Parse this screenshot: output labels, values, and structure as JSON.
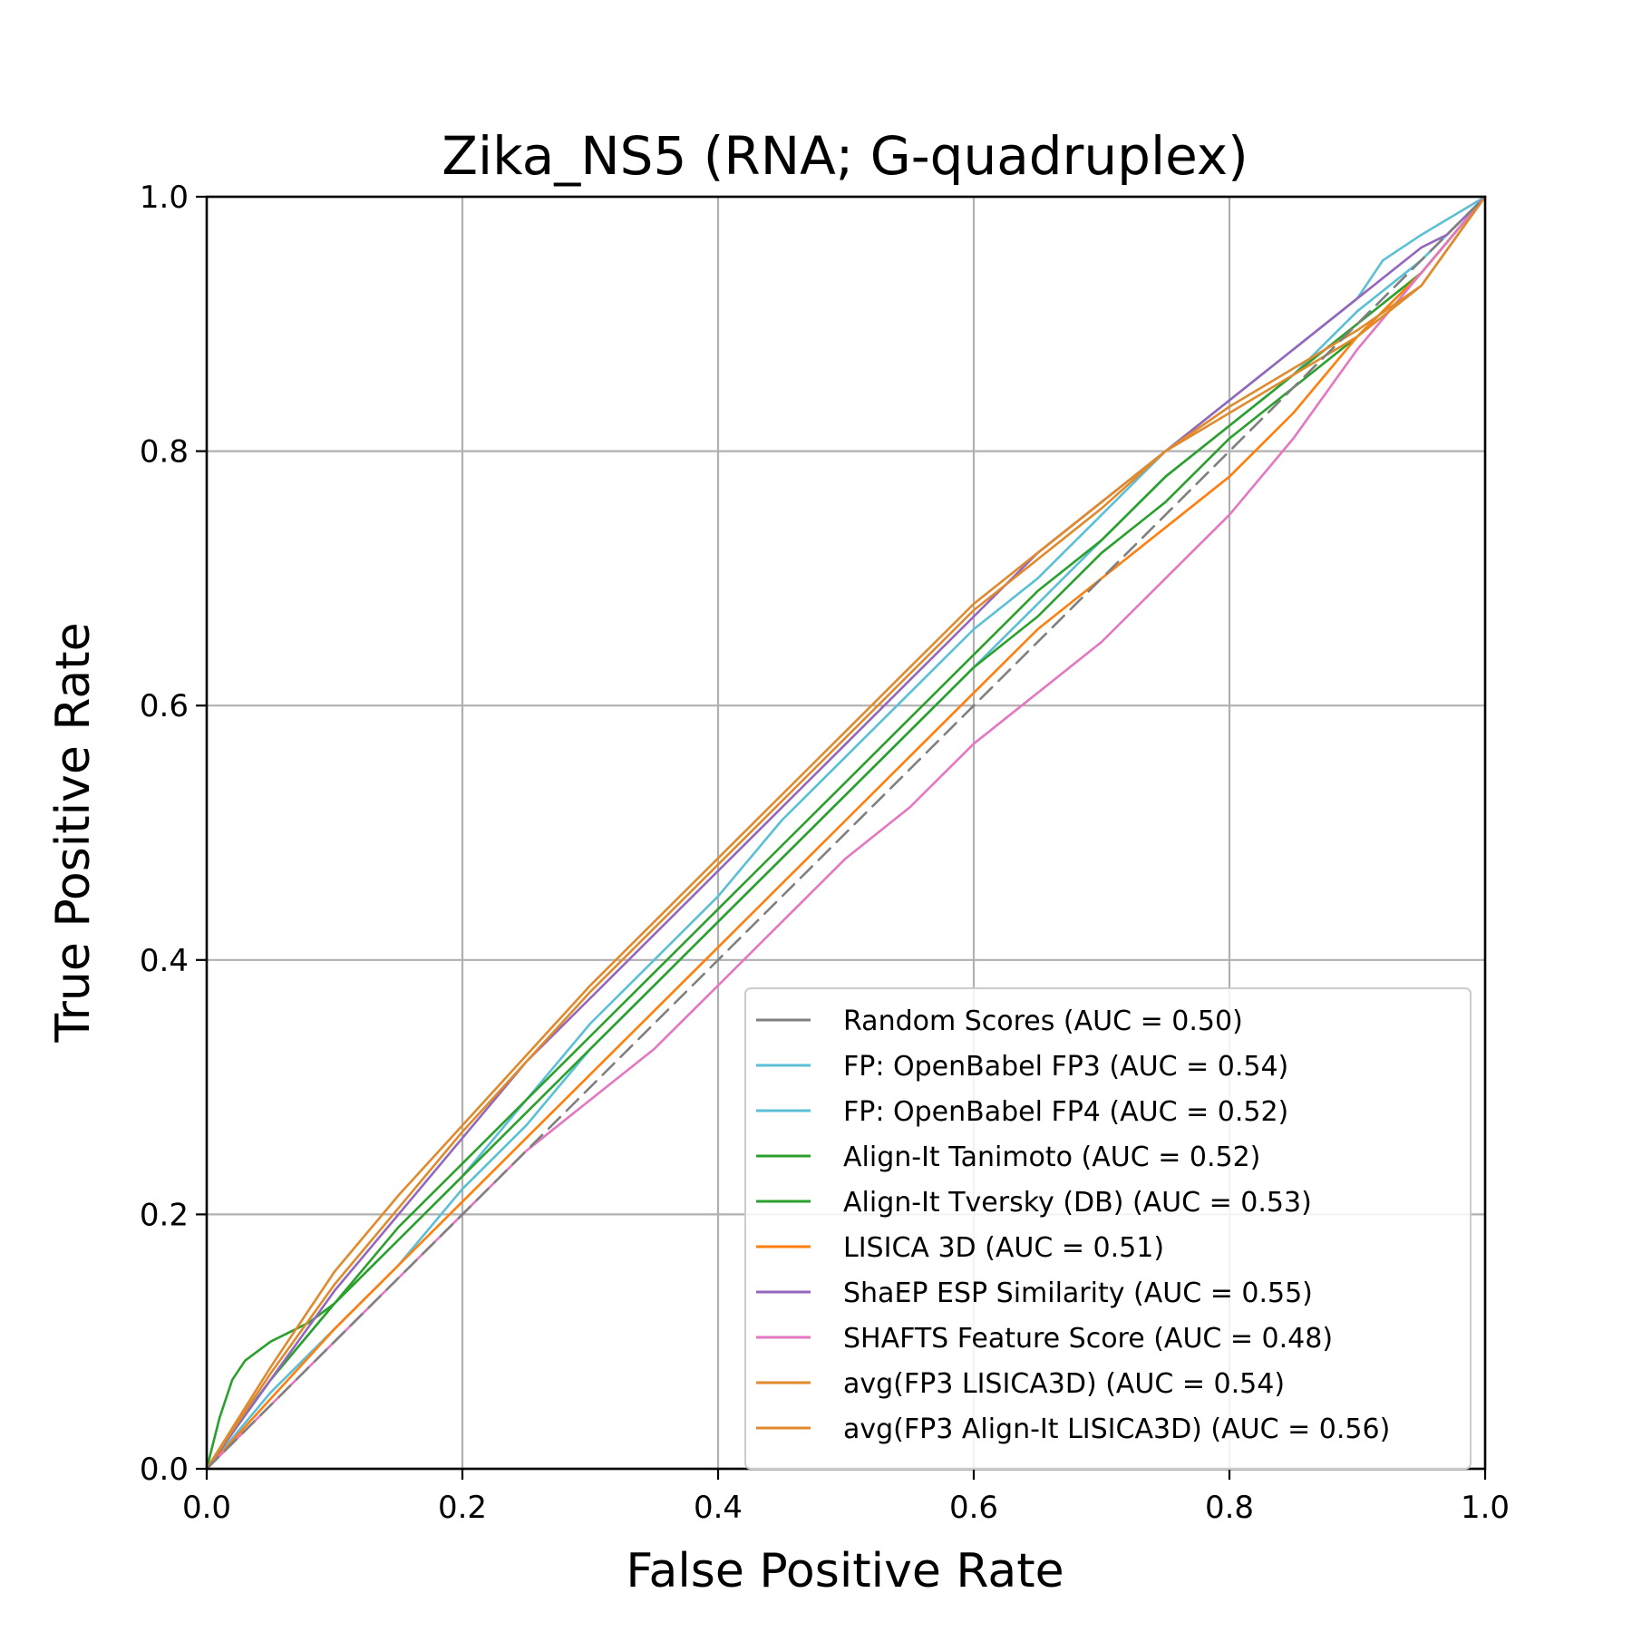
{
  "chart_data": {
    "type": "line",
    "title": "Zika_NS5 (RNA; G-quadruplex)",
    "xlabel": "False Positive Rate",
    "ylabel": "True Positive Rate",
    "xlim": [
      0,
      1
    ],
    "ylim": [
      0,
      1
    ],
    "xticks": [
      "0.0",
      "0.2",
      "0.4",
      "0.6",
      "0.8",
      "1.0"
    ],
    "yticks": [
      "0.0",
      "0.2",
      "0.4",
      "0.6",
      "0.8",
      "1.0"
    ],
    "grid": true,
    "legend_position": "lower-right",
    "series": [
      {
        "name": "Random Scores (AUC = 0.50)",
        "color": "#808080",
        "dashed": true,
        "x": [
          0,
          0.2,
          0.4,
          0.6,
          0.8,
          1.0
        ],
        "y": [
          0,
          0.2,
          0.4,
          0.6,
          0.8,
          1.0
        ]
      },
      {
        "name": "FP: OpenBabel FP3 (AUC = 0.54)",
        "color": "#5bc0d6",
        "dashed": false,
        "x": [
          0,
          0.02,
          0.05,
          0.1,
          0.15,
          0.2,
          0.25,
          0.3,
          0.35,
          0.4,
          0.45,
          0.5,
          0.55,
          0.6,
          0.65,
          0.7,
          0.75,
          0.8,
          0.85,
          0.9,
          0.92,
          0.95,
          1.0
        ],
        "y": [
          0,
          0.03,
          0.07,
          0.13,
          0.18,
          0.23,
          0.29,
          0.35,
          0.4,
          0.45,
          0.51,
          0.56,
          0.61,
          0.66,
          0.7,
          0.75,
          0.8,
          0.84,
          0.88,
          0.92,
          0.95,
          0.97,
          1.0
        ]
      },
      {
        "name": "FP: OpenBabel FP4 (AUC = 0.52)",
        "color": "#5bc0d6",
        "dashed": false,
        "x": [
          0,
          0.05,
          0.1,
          0.15,
          0.2,
          0.25,
          0.3,
          0.35,
          0.4,
          0.45,
          0.5,
          0.55,
          0.6,
          0.65,
          0.7,
          0.75,
          0.8,
          0.85,
          0.9,
          0.95,
          1.0
        ],
        "y": [
          0,
          0.06,
          0.11,
          0.16,
          0.22,
          0.27,
          0.33,
          0.38,
          0.43,
          0.48,
          0.53,
          0.58,
          0.63,
          0.68,
          0.73,
          0.78,
          0.82,
          0.86,
          0.91,
          0.95,
          1.0
        ]
      },
      {
        "name": "Align-It Tanimoto (AUC = 0.52)",
        "color": "#2ca02c",
        "dashed": false,
        "x": [
          0,
          0.01,
          0.02,
          0.03,
          0.05,
          0.08,
          0.1,
          0.15,
          0.2,
          0.25,
          0.3,
          0.35,
          0.4,
          0.45,
          0.5,
          0.55,
          0.6,
          0.65,
          0.7,
          0.75,
          0.8,
          0.85,
          0.9,
          0.95,
          1.0
        ],
        "y": [
          0,
          0.04,
          0.07,
          0.085,
          0.1,
          0.115,
          0.13,
          0.18,
          0.23,
          0.28,
          0.33,
          0.38,
          0.43,
          0.48,
          0.53,
          0.58,
          0.63,
          0.67,
          0.72,
          0.76,
          0.81,
          0.85,
          0.89,
          0.94,
          1.0
        ]
      },
      {
        "name": "Align-It Tversky (DB) (AUC = 0.53)",
        "color": "#2ca02c",
        "dashed": false,
        "x": [
          0,
          0.05,
          0.1,
          0.15,
          0.2,
          0.25,
          0.3,
          0.35,
          0.4,
          0.45,
          0.5,
          0.55,
          0.6,
          0.65,
          0.7,
          0.75,
          0.8,
          0.85,
          0.9,
          0.95,
          1.0
        ],
        "y": [
          0,
          0.07,
          0.13,
          0.19,
          0.24,
          0.29,
          0.34,
          0.39,
          0.44,
          0.49,
          0.54,
          0.59,
          0.64,
          0.69,
          0.73,
          0.78,
          0.82,
          0.86,
          0.9,
          0.94,
          1.0
        ]
      },
      {
        "name": "LISICA 3D (AUC = 0.51)",
        "color": "#ff7f0e",
        "dashed": false,
        "x": [
          0,
          0.05,
          0.1,
          0.15,
          0.2,
          0.25,
          0.3,
          0.35,
          0.4,
          0.45,
          0.5,
          0.55,
          0.6,
          0.65,
          0.7,
          0.75,
          0.8,
          0.85,
          0.9,
          0.95,
          1.0
        ],
        "y": [
          0,
          0.055,
          0.11,
          0.16,
          0.21,
          0.26,
          0.31,
          0.36,
          0.41,
          0.46,
          0.51,
          0.56,
          0.61,
          0.66,
          0.7,
          0.74,
          0.78,
          0.83,
          0.89,
          0.94,
          1.0
        ]
      },
      {
        "name": "ShaEP ESP Similarity (AUC = 0.55)",
        "color": "#9467bd",
        "dashed": false,
        "x": [
          0,
          0.05,
          0.1,
          0.15,
          0.2,
          0.25,
          0.3,
          0.35,
          0.4,
          0.45,
          0.5,
          0.55,
          0.6,
          0.65,
          0.7,
          0.75,
          0.8,
          0.85,
          0.9,
          0.95,
          0.97,
          1.0
        ],
        "y": [
          0,
          0.07,
          0.14,
          0.2,
          0.26,
          0.32,
          0.37,
          0.42,
          0.47,
          0.52,
          0.57,
          0.62,
          0.67,
          0.72,
          0.76,
          0.8,
          0.84,
          0.88,
          0.92,
          0.96,
          0.97,
          1.0
        ]
      },
      {
        "name": "SHAFTS Feature Score (AUC = 0.48)",
        "color": "#e377c2",
        "dashed": false,
        "x": [
          0,
          0.05,
          0.1,
          0.15,
          0.2,
          0.25,
          0.3,
          0.35,
          0.4,
          0.45,
          0.5,
          0.55,
          0.6,
          0.65,
          0.7,
          0.75,
          0.8,
          0.85,
          0.9,
          0.95,
          1.0
        ],
        "y": [
          0,
          0.05,
          0.1,
          0.15,
          0.2,
          0.25,
          0.29,
          0.33,
          0.38,
          0.43,
          0.48,
          0.52,
          0.57,
          0.61,
          0.65,
          0.7,
          0.75,
          0.81,
          0.88,
          0.94,
          1.0
        ]
      },
      {
        "name": "avg(FP3 LISICA3D) (AUC = 0.54)",
        "color": "#e08a2e",
        "dashed": false,
        "x": [
          0,
          0.05,
          0.1,
          0.15,
          0.2,
          0.25,
          0.3,
          0.35,
          0.4,
          0.45,
          0.5,
          0.55,
          0.6,
          0.65,
          0.7,
          0.75,
          0.8,
          0.85,
          0.9,
          0.95,
          1.0
        ],
        "y": [
          0,
          0.075,
          0.145,
          0.205,
          0.265,
          0.32,
          0.375,
          0.425,
          0.475,
          0.525,
          0.575,
          0.625,
          0.675,
          0.715,
          0.755,
          0.8,
          0.835,
          0.865,
          0.895,
          0.93,
          1.0
        ]
      },
      {
        "name": "avg(FP3 Align-It LISICA3D) (AUC = 0.56)",
        "color": "#e08a2e",
        "dashed": false,
        "x": [
          0,
          0.05,
          0.1,
          0.15,
          0.2,
          0.25,
          0.3,
          0.35,
          0.4,
          0.45,
          0.5,
          0.55,
          0.6,
          0.65,
          0.7,
          0.75,
          0.8,
          0.85,
          0.9,
          0.95,
          1.0
        ],
        "y": [
          0,
          0.08,
          0.155,
          0.215,
          0.27,
          0.325,
          0.38,
          0.43,
          0.48,
          0.53,
          0.58,
          0.63,
          0.68,
          0.72,
          0.76,
          0.8,
          0.83,
          0.86,
          0.89,
          0.93,
          1.0
        ]
      }
    ]
  }
}
